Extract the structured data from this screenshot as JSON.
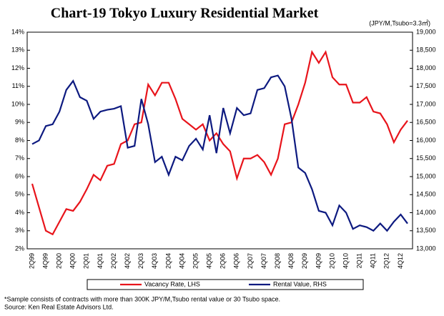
{
  "chart_data": {
    "type": "line",
    "title": "Chart-19 Tokyo Luxury Residential Market",
    "unit_label": "(JPY/M,Tsubo=3.3㎡)",
    "categories": [
      "2Q99",
      null,
      "4Q99",
      null,
      "2Q00",
      null,
      "4Q00",
      null,
      "2Q01",
      null,
      "4Q01",
      null,
      "2Q02",
      null,
      "4Q02",
      null,
      "2Q03",
      null,
      "4Q03",
      null,
      "2Q04",
      null,
      "4Q04",
      null,
      "2Q05",
      null,
      "4Q05",
      null,
      "2Q06",
      null,
      "4Q06",
      null,
      "2Q07",
      null,
      "4Q07",
      null,
      "2Q08",
      null,
      "4Q08",
      null,
      "2Q09",
      null,
      "4Q09",
      null,
      "2Q10",
      null,
      "4Q10",
      null,
      "2Q11",
      null,
      "4Q11",
      null,
      "2Q12",
      null,
      "4Q12",
      null
    ],
    "series": [
      {
        "name": "Vacancy Rate, LHS",
        "color": "#e8141b",
        "axis": "y",
        "values": [
          5.6,
          4.3,
          3.0,
          2.8,
          3.5,
          4.2,
          4.1,
          4.6,
          5.3,
          6.1,
          5.8,
          6.6,
          6.7,
          7.8,
          8.0,
          8.9,
          9.0,
          11.1,
          10.5,
          11.2,
          11.2,
          10.3,
          9.2,
          8.9,
          8.6,
          8.9,
          8.0,
          8.4,
          7.8,
          7.4,
          5.9,
          7.0,
          7.0,
          7.2,
          6.8,
          6.1,
          7.0,
          8.9,
          9.0,
          10.0,
          11.2,
          12.9,
          12.3,
          12.9,
          11.5,
          11.1,
          11.1,
          10.1,
          10.1,
          10.4,
          9.6,
          9.5,
          8.9,
          7.9,
          8.6,
          9.1
        ]
      },
      {
        "name": "Rental Value, RHS",
        "color": "#0d1a80",
        "axis": "y2",
        "values": [
          15900,
          16000,
          16400,
          16450,
          16800,
          17400,
          17650,
          17200,
          17100,
          16600,
          16800,
          16850,
          16880,
          16950,
          15800,
          15850,
          17150,
          16450,
          15400,
          15550,
          15050,
          15550,
          15450,
          15850,
          16050,
          15750,
          16700,
          15650,
          16900,
          16200,
          16900,
          16700,
          16750,
          17400,
          17450,
          17750,
          17800,
          17500,
          16600,
          15250,
          15100,
          14650,
          14050,
          14000,
          13650,
          14200,
          14000,
          13550,
          13650,
          13600,
          13500,
          13700,
          13500,
          13750,
          13950,
          13700
        ]
      }
    ],
    "ylim": [
      2,
      14
    ],
    "yticks": [
      {
        "value": 2,
        "label": "2%"
      },
      {
        "value": 3,
        "label": "3%"
      },
      {
        "value": 4,
        "label": "4%"
      },
      {
        "value": 5,
        "label": "5%"
      },
      {
        "value": 6,
        "label": "6%"
      },
      {
        "value": 7,
        "label": "7%"
      },
      {
        "value": 8,
        "label": "8%"
      },
      {
        "value": 9,
        "label": "9%"
      },
      {
        "value": 10,
        "label": "10%"
      },
      {
        "value": 11,
        "label": "11%"
      },
      {
        "value": 12,
        "label": "12%"
      },
      {
        "value": 13,
        "label": "13%"
      },
      {
        "value": 14,
        "label": "14%"
      }
    ],
    "y2lim": [
      13000,
      19000
    ],
    "y2ticks": [
      {
        "value": 13000,
        "label": "13,000"
      },
      {
        "value": 13500,
        "label": "13,500"
      },
      {
        "value": 14000,
        "label": "14,000"
      },
      {
        "value": 14500,
        "label": "14,500"
      },
      {
        "value": 15000,
        "label": "15,000"
      },
      {
        "value": 15500,
        "label": "15,500"
      },
      {
        "value": 16000,
        "label": "16,000"
      },
      {
        "value": 16500,
        "label": "16,500"
      },
      {
        "value": 17000,
        "label": "17,000"
      },
      {
        "value": 17500,
        "label": "17,500"
      },
      {
        "value": 18000,
        "label": "18,000"
      },
      {
        "value": 18500,
        "label": "18,500"
      },
      {
        "value": 19000,
        "label": "19,000"
      }
    ],
    "grid": false,
    "legend": "bottom",
    "notes": [
      "*Sample consists of contracts with more than 300K JPY/M,Tsubo rental value or 30 Tsubo space.",
      "Source: Ken Real Estate Advisors Ltd."
    ]
  }
}
